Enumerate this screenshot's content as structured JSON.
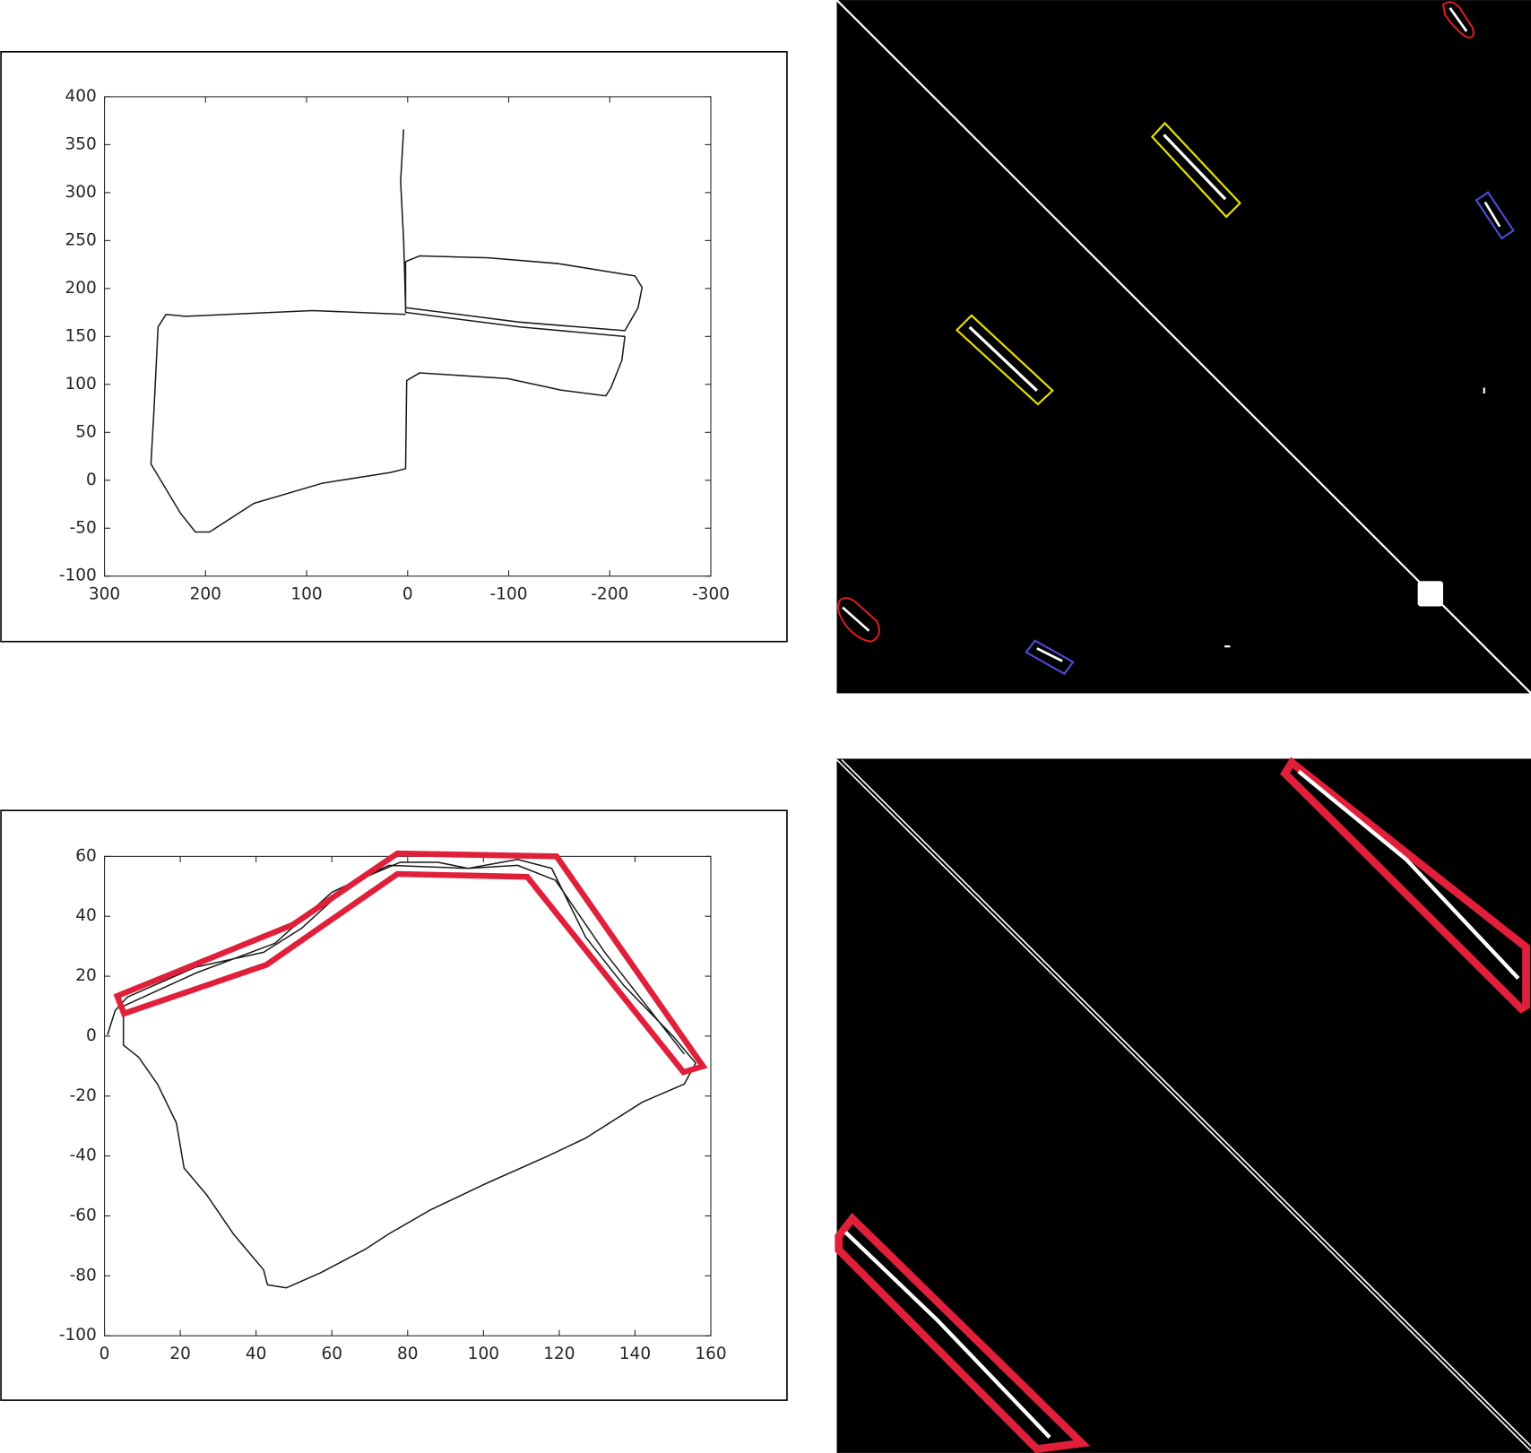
{
  "chart_data": [
    {
      "type": "line",
      "x": [
        4,
        7,
        4,
        2,
        -110,
        -215,
        -228,
        -232,
        -225,
        -149,
        -80,
        -12,
        2,
        2,
        -110,
        -215,
        -212,
        -201,
        -196,
        -152,
        -99,
        -12,
        1,
        2,
        17,
        84,
        152,
        196,
        210,
        225,
        254,
        251,
        247,
        239,
        220,
        94,
        2
      ],
      "series": [
        {
          "color": "#1a1a1a",
          "values": [
            366,
            312,
            250,
            180,
            165,
            156,
            180,
            201,
            213,
            226,
            232,
            234,
            228,
            175,
            160,
            150,
            125,
            96,
            88,
            94,
            106,
            112,
            104,
            12,
            8,
            -3,
            -24,
            -54,
            -54,
            -34,
            17,
            73,
            160,
            173,
            171,
            177,
            173
          ]
        }
      ],
      "xlim": [
        300,
        -300
      ],
      "ylim": [
        -100,
        400
      ],
      "xticks": [
        300,
        200,
        100,
        0,
        -100,
        -200,
        -300
      ],
      "yticks": [
        -100,
        -50,
        0,
        50,
        100,
        150,
        200,
        250,
        300,
        350,
        400
      ]
    },
    {
      "type": "line",
      "x": [
        0.8,
        2.8,
        6,
        24,
        42,
        52,
        65,
        78,
        88,
        96,
        109,
        118,
        127,
        137,
        150,
        156,
        153,
        142,
        127,
        117,
        101,
        86,
        75,
        69,
        57,
        48,
        43,
        42,
        34,
        27,
        21,
        19,
        14,
        9,
        5,
        5,
        24,
        45,
        60,
        75,
        96,
        109,
        119,
        132,
        153
      ],
      "series": [
        {
          "color": "#1a1a1a",
          "values": [
            0.4,
            8.5,
            13,
            23,
            28,
            36,
            51,
            58,
            58,
            56,
            59,
            56,
            33,
            17,
            0,
            -9,
            -16,
            -22,
            -34,
            -40,
            -49,
            -58,
            -66,
            -71,
            -79,
            -84,
            -83,
            -78,
            -66,
            -53,
            -44,
            -29,
            -16,
            -7,
            -3,
            10,
            21,
            31,
            48,
            57,
            56,
            57,
            52,
            28,
            -6
          ]
        }
      ],
      "xlim": [
        0,
        160
      ],
      "ylim": [
        -100,
        60
      ],
      "xticks": [
        0,
        20,
        40,
        60,
        80,
        100,
        120,
        140,
        160
      ],
      "yticks": [
        -100,
        -80,
        -60,
        -40,
        -20,
        0,
        20,
        40,
        60
      ]
    }
  ]
}
